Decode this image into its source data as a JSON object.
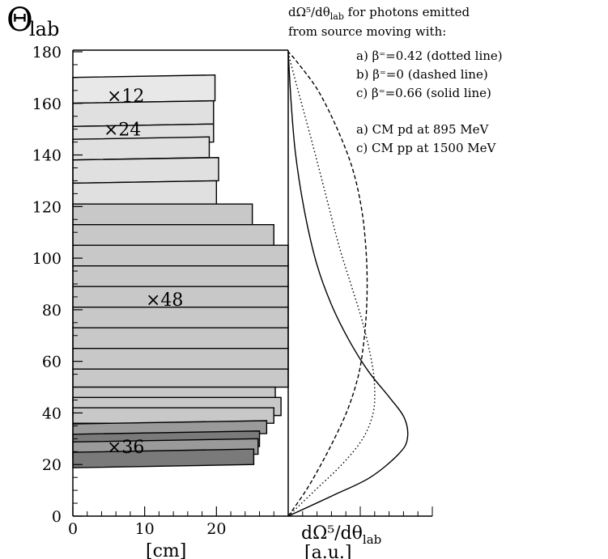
{
  "header": {
    "theta_symbol": "Θ",
    "theta_sub": "lab",
    "desc_line1": "dΩ⁵/dθ",
    "desc_line1_sub": "lab",
    "desc_line1_tail": " for photons emitted",
    "desc_line2": "from source moving with:"
  },
  "legend": {
    "items": [
      {
        "label": "a) β = 0.42 (dotted line)",
        "display": "a) β⁼=0.42 (dotted line)",
        "style": "dotted"
      },
      {
        "label": "b) β = 0 (dashed line)",
        "display": "b) β⁼=0 (dashed line)",
        "style": "dashed"
      },
      {
        "label": "c) β = 0.66 (solid line)",
        "display": "c) β⁼=0.66 (solid line)",
        "style": "solid"
      }
    ],
    "notes": [
      "a) CM pd at 895 MeV",
      "c) CM pp at 1500 MeV"
    ]
  },
  "axes": {
    "bottom_left_label": "[cm]",
    "bottom_right_label": "dΩ⁵/dθ",
    "bottom_right_label_sub": "lab",
    "bottom_right_unit": "[a.u.]"
  },
  "chart_data": [
    {
      "type": "bar",
      "orientation": "horizontal",
      "ylim": [
        0,
        180
      ],
      "xlim": [
        0,
        30
      ],
      "yticks": [
        0,
        20,
        40,
        60,
        80,
        100,
        120,
        140,
        160,
        180
      ],
      "xticks": [
        0,
        10,
        20
      ],
      "xlabel": "[cm]",
      "colors": {
        "x12": "#e8e8e8",
        "x24": "#e0e0e0",
        "x48": "#c8c8c8",
        "x36": "#7a7a7a",
        "x36_band": "#9a9a9a"
      },
      "groups": [
        {
          "label": "×12",
          "value_hint": "detector element length",
          "bars": [
            {
              "theta_lo": 161,
              "theta_hi": 171,
              "length": 19.8
            }
          ]
        },
        {
          "label": "×24",
          "value_hint": "detector element length",
          "bars": [
            {
              "theta_lo": 152,
              "theta_hi": 161,
              "length": 19.6
            },
            {
              "theta_lo": 145,
              "theta_hi": 152,
              "length": 19.6
            },
            {
              "theta_lo": 139,
              "theta_hi": 147,
              "length": 19.0
            },
            {
              "theta_lo": 130,
              "theta_hi": 139,
              "length": 20.3
            },
            {
              "theta_lo": 121,
              "theta_hi": 130,
              "length": 20.0
            }
          ]
        },
        {
          "label": "×48",
          "value_hint": "detector element length",
          "bars": [
            {
              "theta_lo": 113,
              "theta_hi": 121,
              "length": 25.0
            },
            {
              "theta_lo": 105,
              "theta_hi": 113,
              "length": 28.0
            },
            {
              "theta_lo": 97,
              "theta_hi": 105,
              "length": 30.0
            },
            {
              "theta_lo": 89,
              "theta_hi": 97,
              "length": 30.0
            },
            {
              "theta_lo": 81,
              "theta_hi": 89,
              "length": 30.0
            },
            {
              "theta_lo": 73,
              "theta_hi": 81,
              "length": 30.0
            },
            {
              "theta_lo": 65,
              "theta_hi": 73,
              "length": 30.0
            },
            {
              "theta_lo": 57,
              "theta_hi": 65,
              "length": 30.0
            },
            {
              "theta_lo": 50,
              "theta_hi": 57,
              "length": 30.0
            },
            {
              "theta_lo": 44,
              "theta_hi": 50,
              "length": 28.2
            },
            {
              "theta_lo": 39,
              "theta_hi": 46,
              "length": 29.0
            },
            {
              "theta_lo": 36,
              "theta_hi": 42,
              "length": 28.0
            }
          ]
        },
        {
          "label": "×36",
          "value_hint": "detector element length",
          "bars": [
            {
              "theta_lo": 32,
              "theta_hi": 37,
              "length": 27.0
            },
            {
              "theta_lo": 27,
              "theta_hi": 33,
              "length": 26.0
            },
            {
              "theta_lo": 24,
              "theta_hi": 30,
              "length": 25.8
            },
            {
              "theta_lo": 20,
              "theta_hi": 26,
              "length": 25.2
            }
          ]
        }
      ]
    },
    {
      "type": "line",
      "ylim": [
        0,
        180
      ],
      "xlim": [
        0,
        1.0
      ],
      "xlabel": "dΩ⁵/dθ lab [a.u.]",
      "series": [
        {
          "name": "a) β = 0.42 (dotted line)",
          "style": "dotted",
          "points": [
            [
              0,
              0
            ],
            [
              0.18,
              10
            ],
            [
              0.36,
              20
            ],
            [
              0.5,
              30
            ],
            [
              0.57,
              40
            ],
            [
              0.58,
              50
            ],
            [
              0.56,
              60
            ],
            [
              0.5,
              75
            ],
            [
              0.42,
              90
            ],
            [
              0.34,
              105
            ],
            [
              0.25,
              125
            ],
            [
              0.16,
              145
            ],
            [
              0.08,
              162
            ],
            [
              0.02,
              175
            ],
            [
              0,
              180
            ]
          ]
        },
        {
          "name": "b) β = 0 (dashed line)",
          "style": "dashed",
          "points": [
            [
              0,
              0
            ],
            [
              0.12,
              10
            ],
            [
              0.22,
              20
            ],
            [
              0.31,
              30
            ],
            [
              0.39,
              40
            ],
            [
              0.45,
              50
            ],
            [
              0.49,
              60
            ],
            [
              0.52,
              75
            ],
            [
              0.53,
              90
            ],
            [
              0.52,
              105
            ],
            [
              0.49,
              120
            ],
            [
              0.43,
              135
            ],
            [
              0.33,
              150
            ],
            [
              0.2,
              165
            ],
            [
              0.06,
              176
            ],
            [
              0,
              180
            ]
          ]
        },
        {
          "name": "c) β = 0.66 (solid line)",
          "style": "solid",
          "points": [
            [
              0,
              0
            ],
            [
              0.3,
              8
            ],
            [
              0.55,
              15
            ],
            [
              0.74,
              24
            ],
            [
              0.8,
              30
            ],
            [
              0.78,
              38
            ],
            [
              0.68,
              46
            ],
            [
              0.54,
              56
            ],
            [
              0.41,
              68
            ],
            [
              0.29,
              82
            ],
            [
              0.19,
              98
            ],
            [
              0.11,
              118
            ],
            [
              0.05,
              140
            ],
            [
              0.02,
              160
            ],
            [
              0,
              180
            ]
          ]
        }
      ]
    }
  ]
}
